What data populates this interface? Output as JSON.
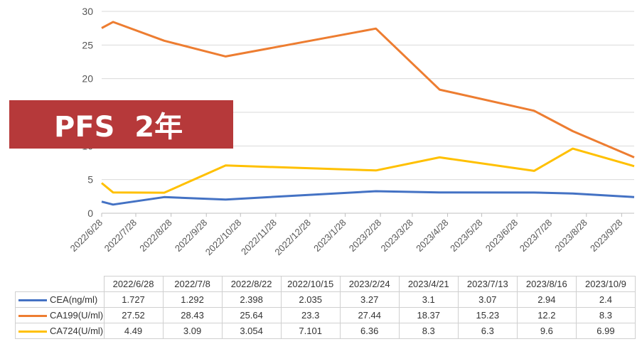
{
  "chart_data": {
    "type": "line",
    "x": [
      "2022/6/28",
      "2022/7/8",
      "2022/8/22",
      "2022/10/15",
      "2023/2/24",
      "2023/4/21",
      "2023/7/13",
      "2023/8/16",
      "2023/10/9"
    ],
    "x_axis_ticks": [
      "2022/6/28",
      "2022/7/28",
      "2022/8/28",
      "2022/9/28",
      "2022/10/28",
      "2022/11/28",
      "2022/12/28",
      "2023/1/28",
      "2023/2/28",
      "2023/3/28",
      "2023/4/28",
      "2023/5/28",
      "2023/6/28",
      "2023/7/28",
      "2023/8/28",
      "2023/9/28"
    ],
    "y_ticks": [
      "0",
      "5",
      "10",
      "15",
      "20",
      "25",
      "30"
    ],
    "ylim": [
      0,
      30
    ],
    "x_axis_type": "date",
    "xlim": [
      "2022/6/28",
      "2023/10/9"
    ],
    "grid": "horizontal",
    "legend": "table",
    "series": [
      {
        "name": "CEA(ng/ml)",
        "color": "#4472c4",
        "values": [
          "1.727",
          "1.292",
          "2.398",
          "2.035",
          "3.27",
          "3.1",
          "3.07",
          "2.94",
          "2.4"
        ]
      },
      {
        "name": "CA199(U/ml)",
        "color": "#ed7d31",
        "values": [
          "27.52",
          "28.43",
          "25.64",
          "23.3",
          "27.44",
          "18.37",
          "15.23",
          "12.2",
          "8.3"
        ]
      },
      {
        "name": "CA724(U/ml)",
        "color": "#ffc000",
        "values": [
          "4.49",
          "3.09",
          "3.054",
          "7.101",
          "6.36",
          "8.3",
          "6.3",
          "9.6",
          "6.99"
        ]
      }
    ]
  },
  "banner": {
    "text": "PFS  2年",
    "color": "#b6393a"
  }
}
